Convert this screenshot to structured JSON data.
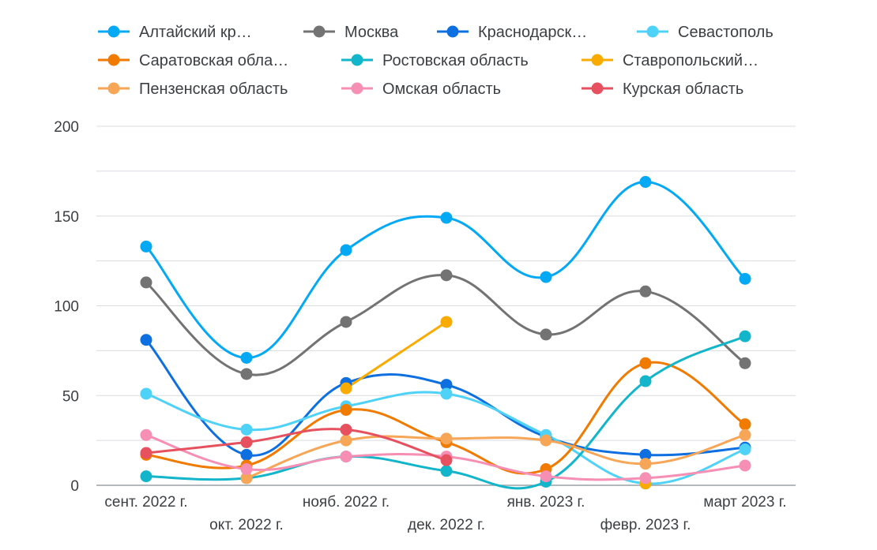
{
  "chart_data": {
    "type": "line",
    "title": "",
    "xlabel": "",
    "ylabel": "",
    "ylim": [
      0,
      200
    ],
    "yticks": [
      0,
      50,
      100,
      150,
      200
    ],
    "grid": true,
    "legend_position": "top",
    "categories": [
      "сент. 2022 г.",
      "окт. 2022 г.",
      "нояб. 2022 г.",
      "дек. 2022 г.",
      "янв. 2023 г.",
      "февр. 2023 г.",
      "март 2023 г."
    ],
    "series": [
      {
        "name": "Алтайский кр…",
        "color": "#03a9f4",
        "values": [
          133,
          71,
          131,
          149,
          116,
          169,
          115
        ]
      },
      {
        "name": "Москва",
        "color": "#737373",
        "values": [
          113,
          62,
          91,
          117,
          84,
          108,
          68
        ]
      },
      {
        "name": "Краснодарск…",
        "color": "#0d6fe0",
        "values": [
          81,
          17,
          57,
          56,
          27,
          17,
          21
        ]
      },
      {
        "name": "Севастополь",
        "color": "#4fd2f7",
        "values": [
          51,
          31,
          44,
          51,
          28,
          1,
          20
        ]
      },
      {
        "name": "Саратовская обла…",
        "color": "#f17a00",
        "values": [
          17,
          11,
          42,
          24,
          9,
          68,
          34
        ]
      },
      {
        "name": "Ростовская область",
        "color": "#12b5c9",
        "values": [
          5,
          4,
          16,
          8,
          2,
          58,
          83
        ]
      },
      {
        "name": "Ставропольский…",
        "color": "#f9ab00",
        "values": [
          null,
          null,
          54,
          91,
          null,
          1,
          null
        ]
      },
      {
        "name": "Пензенская область",
        "color": "#f6a656",
        "values": [
          null,
          4,
          25,
          26,
          25,
          12,
          28
        ]
      },
      {
        "name": "Омская область",
        "color": "#f78fb5",
        "values": [
          28,
          9,
          16,
          16,
          5,
          4,
          11
        ]
      },
      {
        "name": "Курская область",
        "color": "#e6505f",
        "values": [
          18,
          24,
          31,
          14,
          null,
          null,
          null
        ]
      }
    ]
  }
}
